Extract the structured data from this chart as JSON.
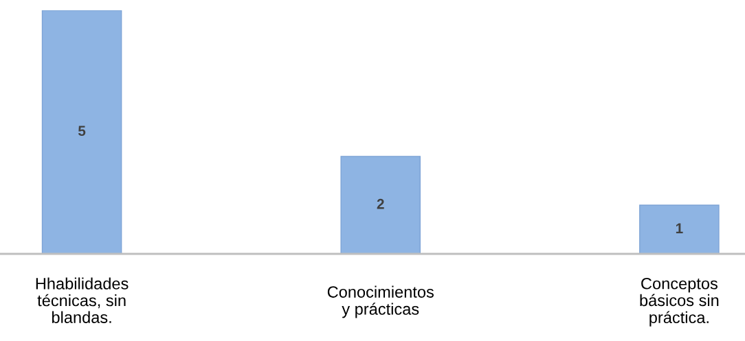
{
  "chart_data": {
    "type": "bar",
    "categories": [
      "Hhabilidades\ntécnicas, sin\nblandas.",
      "Conocimientos\ny prácticas",
      "Conceptos\nbásicos sin\npráctica."
    ],
    "values": [
      5,
      2,
      1
    ],
    "color": "#8eb4e3",
    "data_labels": true,
    "legend": false
  }
}
